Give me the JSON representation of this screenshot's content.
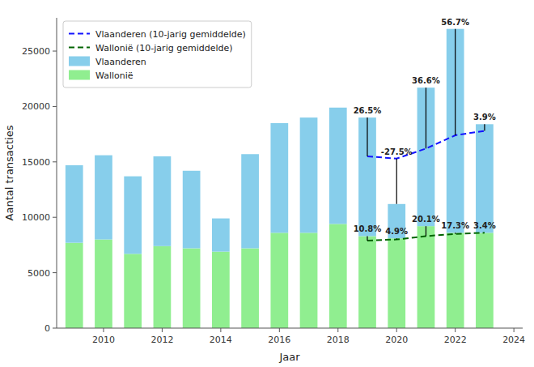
{
  "chart_data": {
    "type": "bar",
    "xlabel": "Jaar",
    "ylabel": "Aantal transacties",
    "x": [
      2009,
      2010,
      2011,
      2012,
      2013,
      2014,
      2015,
      2016,
      2017,
      2018,
      2019,
      2020,
      2021,
      2022,
      2023
    ],
    "series": [
      {
        "name": "Wallonië",
        "type": "bar",
        "color": "#90EE90",
        "values": [
          7700,
          8000,
          6700,
          7400,
          7200,
          6900,
          7200,
          8600,
          8600,
          9400,
          8300,
          8100,
          9200,
          8600,
          8600
        ]
      },
      {
        "name": "Vlaanderen",
        "type": "bar",
        "color": "#87CEEB",
        "values": [
          7000,
          7600,
          7000,
          8100,
          7000,
          3000,
          8500,
          9900,
          10400,
          10500,
          10700,
          3100,
          12500,
          18400,
          9800
        ]
      },
      {
        "name": "Vlaanderen (10-jarig gemiddelde)",
        "type": "line",
        "line_style": "dashed",
        "color": "#1414FF",
        "values": [
          null,
          null,
          null,
          null,
          null,
          null,
          null,
          null,
          null,
          null,
          15500,
          15300,
          16200,
          17400,
          17800
        ]
      },
      {
        "name": "Wallonië (10-jarig gemiddelde)",
        "type": "line",
        "line_style": "dashed",
        "color": "#006400",
        "values": [
          null,
          null,
          null,
          null,
          null,
          null,
          null,
          null,
          null,
          null,
          7900,
          8000,
          8300,
          8500,
          8600
        ]
      }
    ],
    "annotations": [
      {
        "text": "26.5%",
        "x": 2019,
        "low": 15500,
        "high": 19000
      },
      {
        "text": "-27.5%",
        "x": 2020,
        "low": 11200,
        "high": 15300
      },
      {
        "text": "36.6%",
        "x": 2021,
        "low": 16200,
        "high": 21700
      },
      {
        "text": "56.7%",
        "x": 2022,
        "low": 17400,
        "high": 27000
      },
      {
        "text": "3.9%",
        "x": 2023,
        "low": 17800,
        "high": 18400
      },
      {
        "text": "10.8%",
        "x": 2019,
        "low": 7900,
        "high": 8300
      },
      {
        "text": "4.9%",
        "x": 2020,
        "low": 8000,
        "high": 8100
      },
      {
        "text": "20.1%",
        "x": 2021,
        "low": 8300,
        "high": 9200
      },
      {
        "text": "17.3%",
        "x": 2022,
        "low": 8500,
        "high": 8600
      },
      {
        "text": "3.4%",
        "x": 2023,
        "low": 8600,
        "high": 8600
      }
    ],
    "stacked": true,
    "xlim": [
      2008.4,
      2024.3
    ],
    "xticks": [
      2010,
      2012,
      2014,
      2016,
      2018,
      2020,
      2022,
      2024
    ],
    "ylim": [
      0,
      28000
    ],
    "yticks": [
      0,
      5000,
      10000,
      15000,
      20000,
      25000
    ],
    "grid": false,
    "legend": "upper left"
  }
}
